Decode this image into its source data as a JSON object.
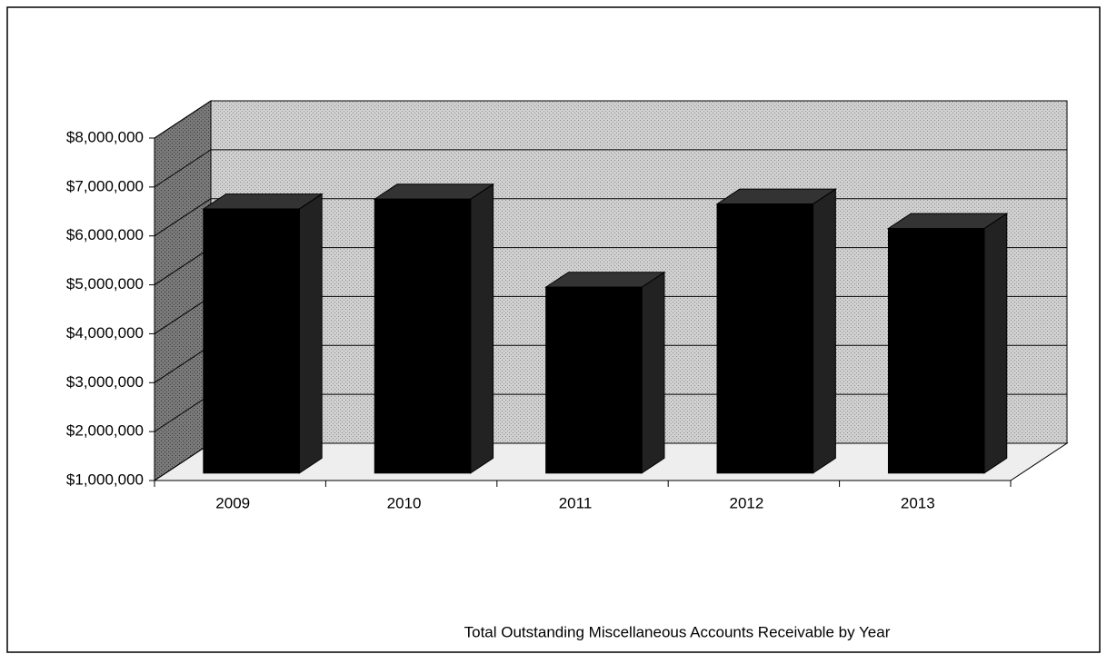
{
  "chart_data": {
    "type": "bar3d",
    "title": "Total Outstanding Miscellaneous Accounts Receivable by Year",
    "categories": [
      "2009",
      "2010",
      "2011",
      "2012",
      "2013"
    ],
    "values": [
      6400000,
      6600000,
      4800000,
      6500000,
      6000000
    ],
    "color": "#000000",
    "ylim": [
      1000000,
      8000000
    ],
    "yticks": [
      {
        "value": 1000000,
        "label": "$1,000,000"
      },
      {
        "value": 2000000,
        "label": "$2,000,000"
      },
      {
        "value": 3000000,
        "label": "$3,000,000"
      },
      {
        "value": 4000000,
        "label": "$4,000,000"
      },
      {
        "value": 5000000,
        "label": "$5,000,000"
      },
      {
        "value": 6000000,
        "label": "$6,000,000"
      },
      {
        "value": 7000000,
        "label": "$7,000,000"
      },
      {
        "value": 8000000,
        "label": "$8,000,000"
      }
    ],
    "grid": true
  }
}
